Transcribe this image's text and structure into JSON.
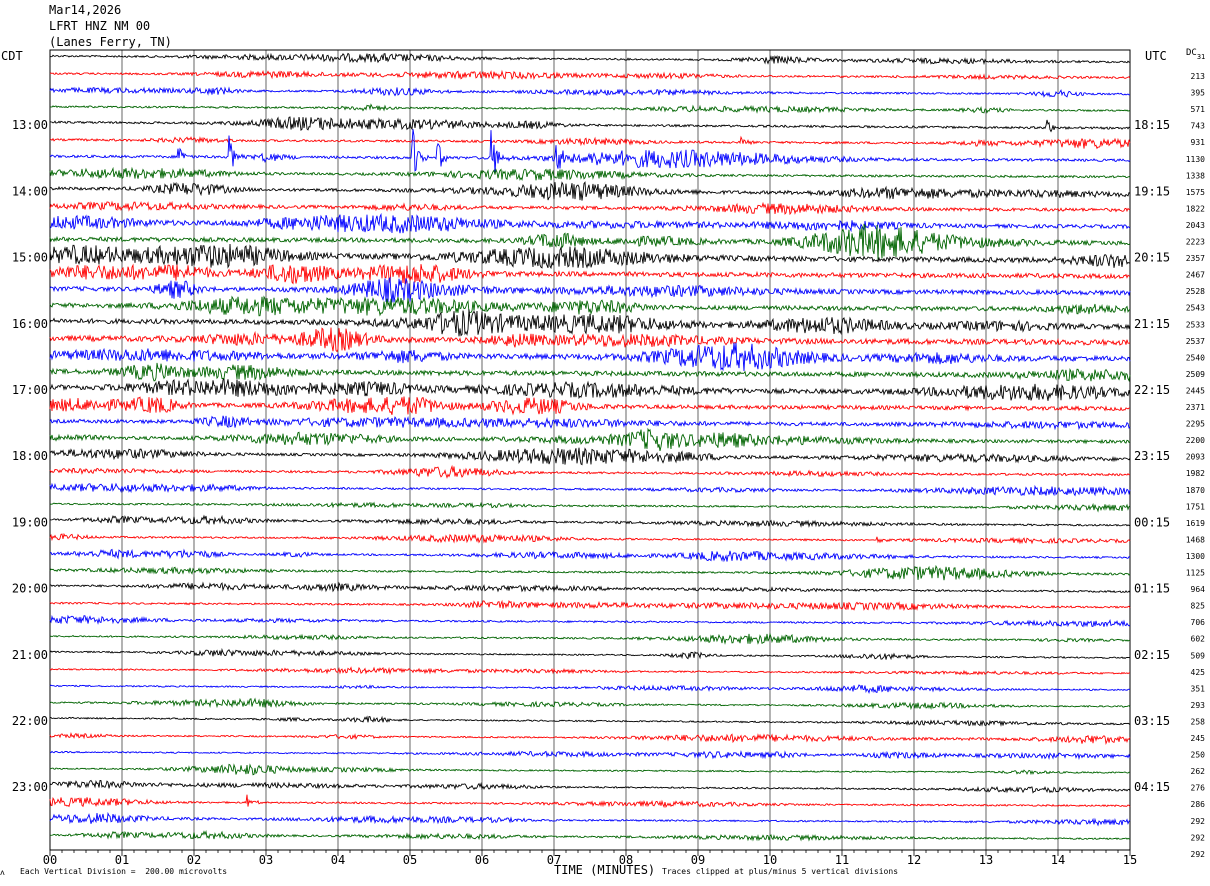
{
  "header": {
    "date": "Mar14,2026",
    "station": "LFRT HNZ NM 00",
    "location": "(Lanes Ferry, TN)"
  },
  "left_axis_title": "CDT",
  "right_axis_title": "UTC",
  "dc_title": "DC",
  "dc_title_sub": "31",
  "footer": {
    "scale_note": "Each Vertical Division =  200.00 microvolts",
    "xlabel": "TIME (MINUTES)",
    "clip_note": "Traces clipped at plus/minus 5 vertical divisions",
    "logo_glyph": "ᴧ"
  },
  "colors": {
    "trace_cycle": [
      "#000000",
      "#ff0000",
      "#0000ff",
      "#006400"
    ],
    "grid": "#000000",
    "background": "#ffffff"
  },
  "chart_data": {
    "type": "line",
    "title": "",
    "xlabel": "TIME (MINUTES)",
    "ylabel": "",
    "x_ticks": [
      "00",
      "01",
      "02",
      "03",
      "04",
      "05",
      "06",
      "07",
      "08",
      "09",
      "10",
      "11",
      "12",
      "13",
      "14",
      "15"
    ],
    "xlim": [
      0,
      15
    ],
    "grid": true,
    "trace_count": 48,
    "left_time_labels": [
      {
        "trace": 4,
        "label": "13:00"
      },
      {
        "trace": 8,
        "label": "14:00"
      },
      {
        "trace": 12,
        "label": "15:00"
      },
      {
        "trace": 16,
        "label": "16:00"
      },
      {
        "trace": 20,
        "label": "17:00"
      },
      {
        "trace": 24,
        "label": "18:00"
      },
      {
        "trace": 28,
        "label": "19:00"
      },
      {
        "trace": 32,
        "label": "20:00"
      },
      {
        "trace": 36,
        "label": "21:00"
      },
      {
        "trace": 40,
        "label": "22:00"
      },
      {
        "trace": 44,
        "label": "23:00"
      }
    ],
    "right_time_labels": [
      {
        "trace": 4,
        "label": "18:15"
      },
      {
        "trace": 8,
        "label": "19:15"
      },
      {
        "trace": 12,
        "label": "20:15"
      },
      {
        "trace": 16,
        "label": "21:15"
      },
      {
        "trace": 20,
        "label": "22:15"
      },
      {
        "trace": 24,
        "label": "23:15"
      },
      {
        "trace": 28,
        "label": "00:15"
      },
      {
        "trace": 32,
        "label": "01:15"
      },
      {
        "trace": 36,
        "label": "02:15"
      },
      {
        "trace": 40,
        "label": "03:15"
      },
      {
        "trace": 44,
        "label": "04:15"
      }
    ],
    "dc_offsets": [
      "213",
      "395",
      "571",
      "743",
      "931",
      "1130",
      "1338",
      "1575",
      "1822",
      "2043",
      "2223",
      "2357",
      "2467",
      "2528",
      "2543",
      "2533",
      "2537",
      "2540",
      "2509",
      "2445",
      "2371",
      "2295",
      "2200",
      "2093",
      "1982",
      "1870",
      "1751",
      "1619",
      "1468",
      "1300",
      "1125",
      "964",
      "825",
      "706",
      "602",
      "509",
      "425",
      "351",
      "293",
      "258",
      "245",
      "250",
      "262",
      "276",
      "286",
      "292",
      "292",
      "292"
    ],
    "trace_noise_level": [
      1,
      1,
      1,
      1,
      1.2,
      1.2,
      1.4,
      1.2,
      1.6,
      1.8,
      2,
      2.4,
      2.8,
      2.6,
      2.4,
      2.4,
      2.6,
      3,
      3,
      2.6,
      2.4,
      2.2,
      2,
      1.8,
      1.4,
      1.2,
      1,
      1,
      1,
      1,
      1,
      1,
      1,
      1,
      1,
      0.9,
      0.8,
      0.8,
      0.8,
      0.8,
      0.8,
      0.8,
      0.8,
      0.8,
      0.9,
      0.9,
      0.9,
      0.9
    ],
    "events": [
      {
        "trace": 4,
        "minute": 13.85,
        "amplitude": 10
      },
      {
        "trace": 5,
        "minute": 9.6,
        "amplitude": 6
      },
      {
        "trace": 6,
        "minute": 1.8,
        "amplitude": 12
      },
      {
        "trace": 6,
        "minute": 2.5,
        "amplitude": 22
      },
      {
        "trace": 6,
        "minute": 2.95,
        "amplitude": 8
      },
      {
        "trace": 6,
        "minute": 5.05,
        "amplitude": 30
      },
      {
        "trace": 6,
        "minute": 5.4,
        "amplitude": 14
      },
      {
        "trace": 6,
        "minute": 6.15,
        "amplitude": 28
      },
      {
        "trace": 6,
        "minute": 7.05,
        "amplitude": 20
      },
      {
        "trace": 6,
        "minute": 7.6,
        "amplitude": 6
      },
      {
        "trace": 29,
        "minute": 11.5,
        "amplitude": 5
      },
      {
        "trace": 45,
        "minute": 2.75,
        "amplitude": 8
      }
    ]
  }
}
